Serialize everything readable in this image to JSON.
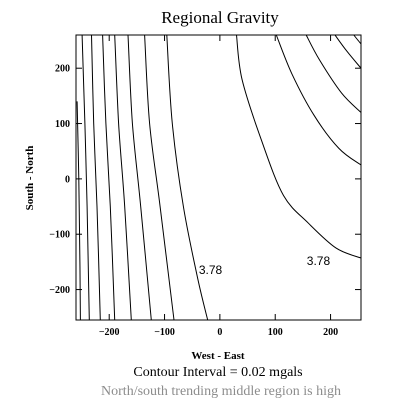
{
  "chart_data": {
    "type": "contour",
    "title": "Regional Gravity",
    "xlabel": "West - East",
    "ylabel": "South - North",
    "xlim": [
      -260,
      255
    ],
    "ylim": [
      -255,
      260
    ],
    "xticks": [
      -200,
      -100,
      0,
      100,
      200
    ],
    "yticks": [
      -200,
      -100,
      0,
      100,
      200
    ],
    "xtick_labels": [
      "−200",
      "−100",
      "0",
      "100",
      "200"
    ],
    "ytick_labels": [
      "−200",
      "−100",
      "0",
      "100",
      "200"
    ],
    "contour_interval": "Contour Interval = 0.02 mgals",
    "caption": "North/south trending middle region is high",
    "grid": false,
    "contours": [
      {
        "points": [
          [
            -258,
            140
          ],
          [
            -255,
            0
          ],
          [
            -253,
            -150
          ],
          [
            -252,
            -255
          ]
        ]
      },
      {
        "points": [
          [
            -249,
            260
          ],
          [
            -244,
            100
          ],
          [
            -240,
            -50
          ],
          [
            -236,
            -255
          ]
        ]
      },
      {
        "points": [
          [
            -232,
            260
          ],
          [
            -228,
            100
          ],
          [
            -222,
            -50
          ],
          [
            -216,
            -255
          ]
        ]
      },
      {
        "points": [
          [
            -212,
            260
          ],
          [
            -206,
            100
          ],
          [
            -198,
            -50
          ],
          [
            -190,
            -255
          ]
        ]
      },
      {
        "points": [
          [
            -190,
            260
          ],
          [
            -183,
            100
          ],
          [
            -172,
            -50
          ],
          [
            -160,
            -255
          ]
        ]
      },
      {
        "points": [
          [
            -166,
            260
          ],
          [
            -158,
            100
          ],
          [
            -143,
            -50
          ],
          [
            -124,
            -255
          ]
        ]
      },
      {
        "points": [
          [
            -136,
            260
          ],
          [
            -127,
            100
          ],
          [
            -108,
            -50
          ],
          [
            -83,
            -255
          ]
        ]
      },
      {
        "points": [
          [
            -96,
            260
          ],
          [
            -86,
            100
          ],
          [
            -66,
            -50
          ],
          [
            -40,
            -180
          ],
          [
            -22,
            -255
          ]
        ]
      },
      {
        "points": [
          [
            30,
            260
          ],
          [
            40,
            180
          ],
          [
            75,
            70
          ],
          [
            115,
            -30
          ],
          [
            160,
            -80
          ],
          [
            210,
            -125
          ],
          [
            255,
            -143
          ]
        ]
      },
      {
        "points": [
          [
            102,
            260
          ],
          [
            130,
            190
          ],
          [
            170,
            115
          ],
          [
            215,
            55
          ],
          [
            255,
            25
          ]
        ]
      },
      {
        "points": [
          [
            156,
            260
          ],
          [
            180,
            215
          ],
          [
            220,
            155
          ],
          [
            255,
            120
          ]
        ]
      },
      {
        "points": [
          [
            208,
            260
          ],
          [
            230,
            230
          ],
          [
            255,
            200
          ]
        ]
      },
      {
        "points": [
          [
            242,
            260
          ],
          [
            250,
            250
          ],
          [
            255,
            244
          ]
        ]
      }
    ],
    "contour_labels": [
      {
        "text": "3.78",
        "x": -38,
        "y": -172
      },
      {
        "text": "3.78",
        "x": 157,
        "y": -156
      }
    ]
  }
}
